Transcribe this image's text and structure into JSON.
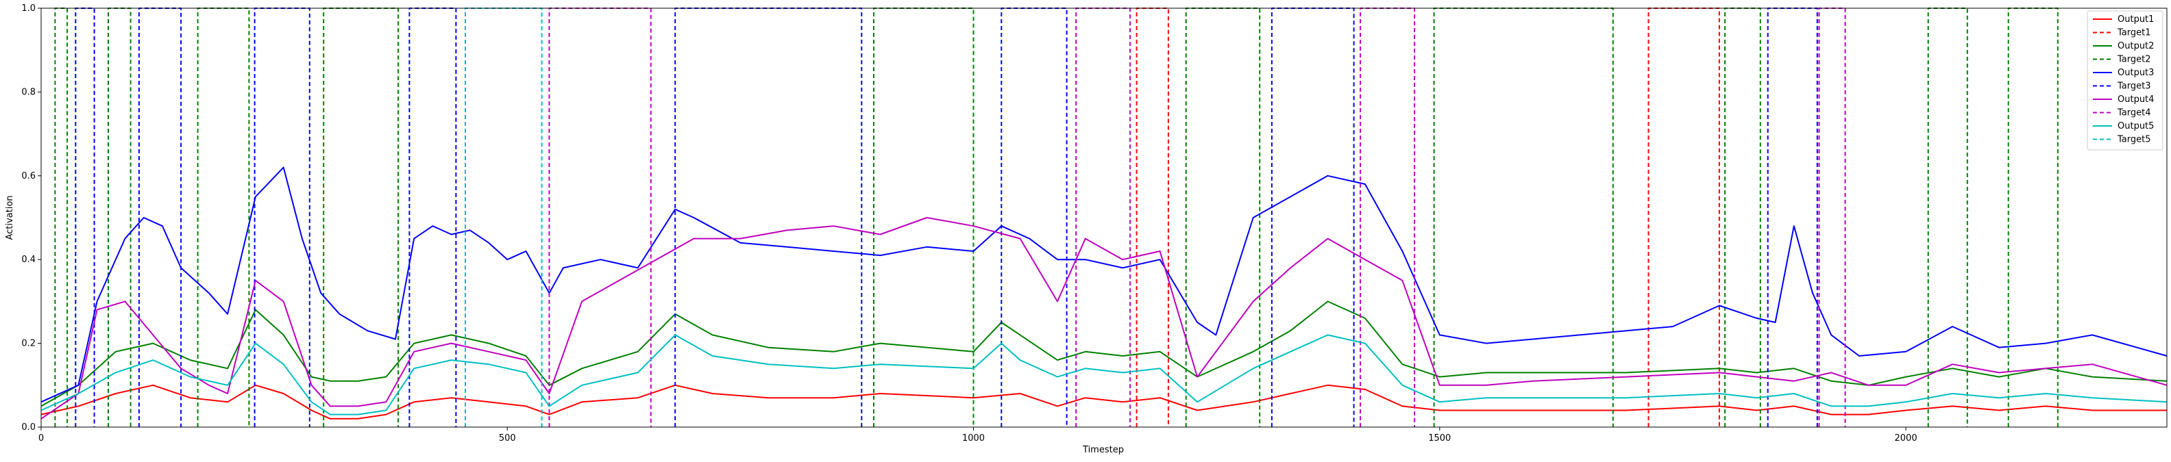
{
  "chart_data": {
    "type": "line",
    "xlabel": "Timestep",
    "ylabel": "Activation",
    "xlim": [
      0,
      2280
    ],
    "ylim": [
      0,
      1.0
    ],
    "x_ticks": [
      0,
      500,
      1000,
      1500,
      2000
    ],
    "y_ticks": [
      0.0,
      0.2,
      0.4,
      0.6,
      0.8,
      1.0
    ],
    "y_tick_labels": [
      "0.0",
      "0.2",
      "0.4",
      "0.6",
      "0.8",
      "1.0"
    ],
    "legend_position": "top-right",
    "colors": {
      "series1": "#ff0000",
      "series2": "#008000",
      "series3": "#0000ff",
      "series4": "#bf00bf",
      "series5": "#00bfbf"
    },
    "series": [
      {
        "name": "Output1",
        "color": "#ff0000",
        "style": "solid",
        "x": [
          0,
          40,
          80,
          120,
          160,
          200,
          230,
          260,
          290,
          310,
          340,
          370,
          400,
          440,
          480,
          520,
          545,
          580,
          640,
          680,
          720,
          780,
          850,
          900,
          1000,
          1050,
          1090,
          1120,
          1160,
          1200,
          1240,
          1300,
          1340,
          1380,
          1420,
          1460,
          1500,
          1550,
          1600,
          1700,
          1800,
          1840,
          1880,
          1920,
          1960,
          2000,
          2050,
          2100,
          2150,
          2200,
          2280
        ],
        "y": [
          0.03,
          0.05,
          0.08,
          0.1,
          0.07,
          0.06,
          0.1,
          0.08,
          0.04,
          0.02,
          0.02,
          0.03,
          0.06,
          0.07,
          0.06,
          0.05,
          0.03,
          0.06,
          0.07,
          0.1,
          0.08,
          0.07,
          0.07,
          0.08,
          0.07,
          0.08,
          0.05,
          0.07,
          0.06,
          0.07,
          0.04,
          0.06,
          0.08,
          0.1,
          0.09,
          0.05,
          0.04,
          0.04,
          0.04,
          0.04,
          0.05,
          0.04,
          0.05,
          0.03,
          0.03,
          0.04,
          0.05,
          0.04,
          0.05,
          0.04,
          0.04
        ]
      },
      {
        "name": "Target1",
        "color": "#ff0000",
        "style": "dashed",
        "intervals": [
          [
            1175,
            1209
          ],
          [
            1724,
            1800
          ]
        ]
      },
      {
        "name": "Output2",
        "color": "#008000",
        "style": "solid",
        "x": [
          0,
          40,
          80,
          120,
          160,
          200,
          230,
          260,
          290,
          310,
          340,
          370,
          400,
          440,
          480,
          520,
          545,
          580,
          640,
          680,
          720,
          780,
          850,
          900,
          1000,
          1030,
          1050,
          1090,
          1120,
          1160,
          1200,
          1240,
          1300,
          1340,
          1380,
          1420,
          1460,
          1500,
          1550,
          1600,
          1700,
          1800,
          1840,
          1880,
          1920,
          1960,
          2000,
          2050,
          2100,
          2150,
          2200,
          2280
        ],
        "y": [
          0.05,
          0.1,
          0.18,
          0.2,
          0.16,
          0.14,
          0.28,
          0.22,
          0.12,
          0.11,
          0.11,
          0.12,
          0.2,
          0.22,
          0.2,
          0.17,
          0.1,
          0.14,
          0.18,
          0.27,
          0.22,
          0.19,
          0.18,
          0.2,
          0.18,
          0.25,
          0.22,
          0.16,
          0.18,
          0.17,
          0.18,
          0.12,
          0.18,
          0.23,
          0.3,
          0.26,
          0.15,
          0.12,
          0.13,
          0.13,
          0.13,
          0.14,
          0.13,
          0.14,
          0.11,
          0.1,
          0.12,
          0.14,
          0.12,
          0.14,
          0.12,
          0.11
        ]
      },
      {
        "name": "Target2",
        "color": "#008000",
        "style": "dashed",
        "intervals": [
          [
            15,
            28
          ],
          [
            72,
            96
          ],
          [
            168,
            223
          ],
          [
            303,
            383
          ],
          [
            893,
            1000
          ],
          [
            1228,
            1307
          ],
          [
            1494,
            1686
          ],
          [
            1806,
            1844
          ],
          [
            2024,
            2066
          ],
          [
            2110,
            2163
          ]
        ]
      },
      {
        "name": "Output3",
        "color": "#0000ff",
        "style": "solid",
        "x": [
          0,
          40,
          60,
          90,
          110,
          130,
          150,
          180,
          200,
          230,
          260,
          280,
          300,
          320,
          350,
          380,
          400,
          420,
          440,
          460,
          480,
          500,
          520,
          545,
          560,
          600,
          640,
          680,
          700,
          750,
          800,
          850,
          900,
          950,
          1000,
          1030,
          1060,
          1090,
          1120,
          1160,
          1200,
          1240,
          1260,
          1300,
          1340,
          1380,
          1420,
          1460,
          1500,
          1550,
          1600,
          1650,
          1700,
          1750,
          1800,
          1840,
          1860,
          1880,
          1900,
          1920,
          1950,
          2000,
          2050,
          2100,
          2150,
          2200,
          2280
        ],
        "y": [
          0.06,
          0.1,
          0.3,
          0.45,
          0.5,
          0.48,
          0.38,
          0.32,
          0.27,
          0.55,
          0.62,
          0.45,
          0.32,
          0.27,
          0.23,
          0.21,
          0.45,
          0.48,
          0.46,
          0.47,
          0.44,
          0.4,
          0.42,
          0.32,
          0.38,
          0.4,
          0.38,
          0.52,
          0.5,
          0.44,
          0.43,
          0.42,
          0.41,
          0.43,
          0.42,
          0.48,
          0.45,
          0.4,
          0.4,
          0.38,
          0.4,
          0.25,
          0.22,
          0.5,
          0.55,
          0.6,
          0.58,
          0.42,
          0.22,
          0.2,
          0.21,
          0.22,
          0.23,
          0.24,
          0.29,
          0.26,
          0.25,
          0.48,
          0.32,
          0.22,
          0.17,
          0.18,
          0.24,
          0.19,
          0.2,
          0.22,
          0.17
        ]
      },
      {
        "name": "Target3",
        "color": "#0000ff",
        "style": "dashed",
        "intervals": [
          [
            37,
            57
          ],
          [
            105,
            150
          ],
          [
            229,
            288
          ],
          [
            395,
            445
          ],
          [
            680,
            880
          ],
          [
            1030,
            1100
          ],
          [
            1320,
            1408
          ],
          [
            1852,
            1905
          ]
        ]
      },
      {
        "name": "Output4",
        "color": "#bf00bf",
        "style": "solid",
        "x": [
          0,
          40,
          60,
          90,
          120,
          150,
          180,
          200,
          230,
          260,
          290,
          310,
          340,
          370,
          400,
          440,
          480,
          520,
          545,
          580,
          620,
          660,
          700,
          750,
          800,
          850,
          900,
          950,
          1000,
          1050,
          1090,
          1120,
          1160,
          1200,
          1240,
          1300,
          1340,
          1380,
          1420,
          1460,
          1500,
          1550,
          1600,
          1700,
          1800,
          1840,
          1880,
          1920,
          1960,
          2000,
          2050,
          2100,
          2150,
          2200,
          2280
        ],
        "y": [
          0.02,
          0.08,
          0.28,
          0.3,
          0.22,
          0.14,
          0.1,
          0.08,
          0.35,
          0.3,
          0.1,
          0.05,
          0.05,
          0.06,
          0.18,
          0.2,
          0.18,
          0.16,
          0.08,
          0.3,
          0.35,
          0.4,
          0.45,
          0.45,
          0.47,
          0.48,
          0.46,
          0.5,
          0.48,
          0.45,
          0.3,
          0.45,
          0.4,
          0.42,
          0.12,
          0.3,
          0.38,
          0.45,
          0.4,
          0.35,
          0.1,
          0.1,
          0.11,
          0.12,
          0.13,
          0.12,
          0.11,
          0.13,
          0.1,
          0.1,
          0.15,
          0.13,
          0.14,
          0.15,
          0.1
        ]
      },
      {
        "name": "Target4",
        "color": "#bf00bf",
        "style": "dashed",
        "intervals": [
          [
            545,
            654
          ],
          [
            1110,
            1168
          ],
          [
            1415,
            1473
          ],
          [
            1907,
            1935
          ]
        ]
      },
      {
        "name": "Output5",
        "color": "#00bfbf",
        "style": "solid",
        "x": [
          0,
          40,
          80,
          120,
          160,
          200,
          230,
          260,
          290,
          310,
          340,
          370,
          400,
          440,
          480,
          520,
          545,
          580,
          640,
          680,
          720,
          780,
          850,
          900,
          1000,
          1030,
          1050,
          1090,
          1120,
          1160,
          1200,
          1240,
          1300,
          1340,
          1380,
          1420,
          1460,
          1500,
          1550,
          1600,
          1700,
          1800,
          1840,
          1880,
          1920,
          1960,
          2000,
          2050,
          2100,
          2150,
          2200,
          2280
        ],
        "y": [
          0.04,
          0.08,
          0.13,
          0.16,
          0.12,
          0.1,
          0.2,
          0.15,
          0.06,
          0.03,
          0.03,
          0.04,
          0.14,
          0.16,
          0.15,
          0.13,
          0.05,
          0.1,
          0.13,
          0.22,
          0.17,
          0.15,
          0.14,
          0.15,
          0.14,
          0.2,
          0.16,
          0.12,
          0.14,
          0.13,
          0.14,
          0.06,
          0.14,
          0.18,
          0.22,
          0.2,
          0.1,
          0.06,
          0.07,
          0.07,
          0.07,
          0.08,
          0.07,
          0.08,
          0.05,
          0.05,
          0.06,
          0.08,
          0.07,
          0.08,
          0.07,
          0.06
        ]
      },
      {
        "name": "Target5",
        "color": "#00bfbf",
        "style": "dashed",
        "intervals": [
          [
            455,
            537
          ]
        ]
      }
    ]
  }
}
